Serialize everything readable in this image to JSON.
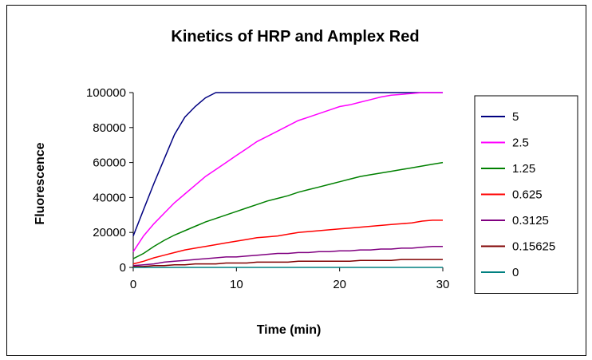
{
  "chart_data": {
    "type": "line",
    "title": "Kinetics of HRP and Amplex Red",
    "xlabel": "Time (min)",
    "ylabel": "Fluorescence",
    "xlim": [
      0,
      30
    ],
    "ylim": [
      0,
      100000
    ],
    "xticks": [
      0,
      10,
      20,
      30
    ],
    "yticks": [
      0,
      20000,
      40000,
      60000,
      80000,
      100000
    ],
    "grid": false,
    "legend_position": "right",
    "x": [
      0,
      1,
      2,
      3,
      4,
      5,
      6,
      7,
      8,
      9,
      10,
      11,
      12,
      13,
      14,
      15,
      16,
      17,
      18,
      19,
      20,
      21,
      22,
      23,
      24,
      25,
      26,
      27,
      28,
      29,
      30
    ],
    "series": [
      {
        "name": "5",
        "color": "#000080",
        "values": [
          18000,
          33000,
          48000,
          62000,
          76000,
          86000,
          92000,
          97000,
          100000,
          100000,
          100000,
          100000,
          100000,
          100000,
          100000,
          100000,
          100000,
          100000,
          100000,
          100000,
          100000,
          100000,
          100000,
          100000,
          100000,
          100000,
          100000,
          100000,
          100000,
          100000,
          100000
        ]
      },
      {
        "name": "2.5",
        "color": "#ff00ff",
        "values": [
          9000,
          18000,
          25000,
          31000,
          37000,
          42000,
          47000,
          52000,
          56000,
          60000,
          64000,
          68000,
          72000,
          75000,
          78000,
          81000,
          84000,
          86000,
          88000,
          90000,
          92000,
          93000,
          94500,
          96000,
          97500,
          98500,
          99000,
          99500,
          100000,
          100000,
          100000
        ]
      },
      {
        "name": "1.25",
        "color": "#008000",
        "values": [
          5000,
          8000,
          12000,
          15500,
          18500,
          21000,
          23500,
          26000,
          28000,
          30000,
          32000,
          34000,
          36000,
          38000,
          39500,
          41000,
          43000,
          44500,
          46000,
          47500,
          49000,
          50500,
          52000,
          53000,
          54000,
          55000,
          56000,
          57000,
          58000,
          59000,
          60000
        ]
      },
      {
        "name": "0.625",
        "color": "#ff0000",
        "values": [
          2000,
          3500,
          5500,
          7000,
          8500,
          10000,
          11000,
          12000,
          13000,
          14000,
          15000,
          16000,
          17000,
          17500,
          18000,
          19000,
          20000,
          20500,
          21000,
          21500,
          22000,
          22500,
          23000,
          23500,
          24000,
          24500,
          25000,
          25500,
          26500,
          27000,
          27000
        ]
      },
      {
        "name": "0.3125",
        "color": "#800080",
        "values": [
          1000,
          1500,
          2000,
          3000,
          3500,
          4000,
          4500,
          5000,
          5500,
          6000,
          6000,
          6500,
          7000,
          7500,
          8000,
          8000,
          8500,
          8500,
          9000,
          9000,
          9500,
          9500,
          10000,
          10000,
          10500,
          10500,
          11000,
          11000,
          11500,
          12000,
          12000
        ]
      },
      {
        "name": "0.15625",
        "color": "#800000",
        "values": [
          500,
          500,
          1000,
          1000,
          1500,
          1500,
          2000,
          2000,
          2000,
          2500,
          2500,
          2500,
          3000,
          3000,
          3000,
          3000,
          3500,
          3500,
          3500,
          3500,
          3500,
          3500,
          4000,
          4000,
          4000,
          4000,
          4500,
          4500,
          4500,
          4500,
          4500
        ]
      },
      {
        "name": "0",
        "color": "#008080",
        "values": [
          0,
          0,
          0,
          0,
          0,
          0,
          0,
          0,
          0,
          0,
          0,
          0,
          0,
          0,
          0,
          0,
          0,
          0,
          0,
          0,
          0,
          0,
          0,
          0,
          0,
          0,
          0,
          0,
          0,
          0,
          0
        ]
      }
    ]
  }
}
